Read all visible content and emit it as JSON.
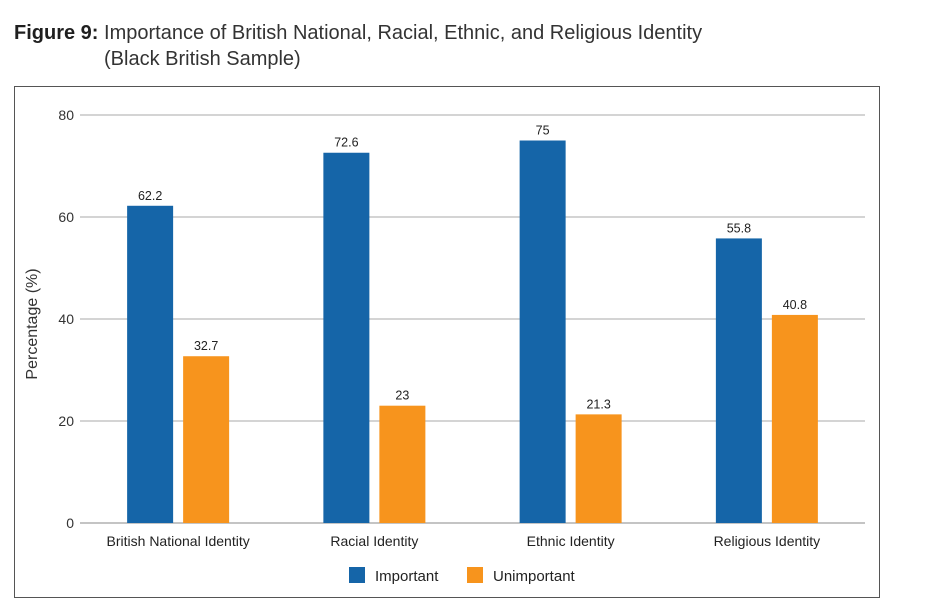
{
  "figure": {
    "label": "Figure 9:",
    "title_line1": "Importance of British National, Racial, Ethnic, and Religious Identity",
    "title_line2": "(Black British Sample)"
  },
  "chart_data": {
    "type": "bar",
    "title": "Importance of British National, Racial, Ethnic, and Religious Identity (Black British Sample)",
    "xlabel": "",
    "ylabel": "Percentage (%)",
    "ylim": [
      0,
      80
    ],
    "yticks": [
      0,
      20,
      40,
      60,
      80
    ],
    "grid": true,
    "legend_position": "bottom",
    "categories": [
      "British National Identity",
      "Racial Identity",
      "Ethnic Identity",
      "Religious Identity"
    ],
    "series": [
      {
        "name": "Important",
        "color": "#1565a8",
        "values": [
          62.2,
          72.6,
          75,
          55.8
        ],
        "labels": [
          "62.2",
          "72.6",
          "75",
          "55.8"
        ]
      },
      {
        "name": "Unimportant",
        "color": "#f7941d",
        "values": [
          32.7,
          23,
          21.3,
          40.8
        ],
        "labels": [
          "32.7",
          "23",
          "21.3",
          "40.8"
        ]
      }
    ]
  }
}
